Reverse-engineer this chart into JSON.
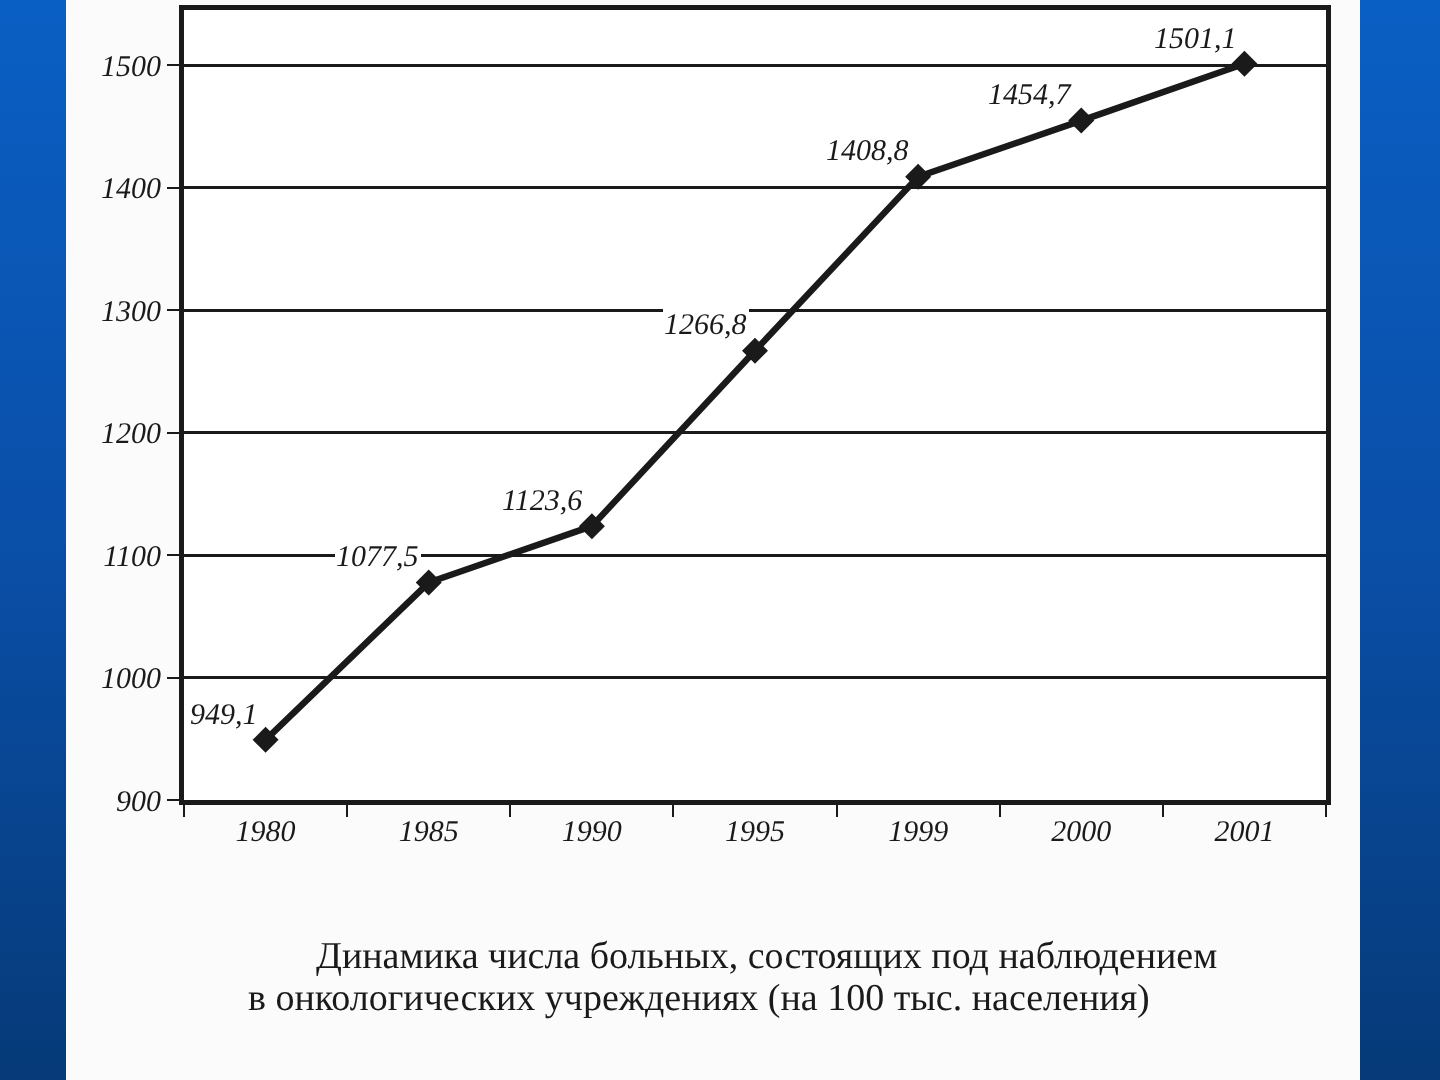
{
  "chart_data": {
    "type": "line",
    "title": "Динамика числа больных, состоящих под наблюдением в онкологических учреждениях (на 100 тыс. населения)",
    "categories": [
      "1980",
      "1985",
      "1990",
      "1995",
      "1999",
      "2000",
      "2001"
    ],
    "values": [
      949.1,
      1077.5,
      1123.6,
      1266.8,
      1408.8,
      1454.7,
      1501.1
    ],
    "value_labels": [
      "949,1",
      "1077,5",
      "1123,6",
      "1266,8",
      "1408,8",
      "1454,7",
      "1501,1"
    ],
    "color": "#1a1a1a",
    "marker": "diamond",
    "line_style": "solid",
    "ylim": [
      900,
      1545
    ],
    "yticks": [
      900,
      1000,
      1100,
      1200,
      1300,
      1400,
      1500
    ],
    "grid": "y"
  }
}
